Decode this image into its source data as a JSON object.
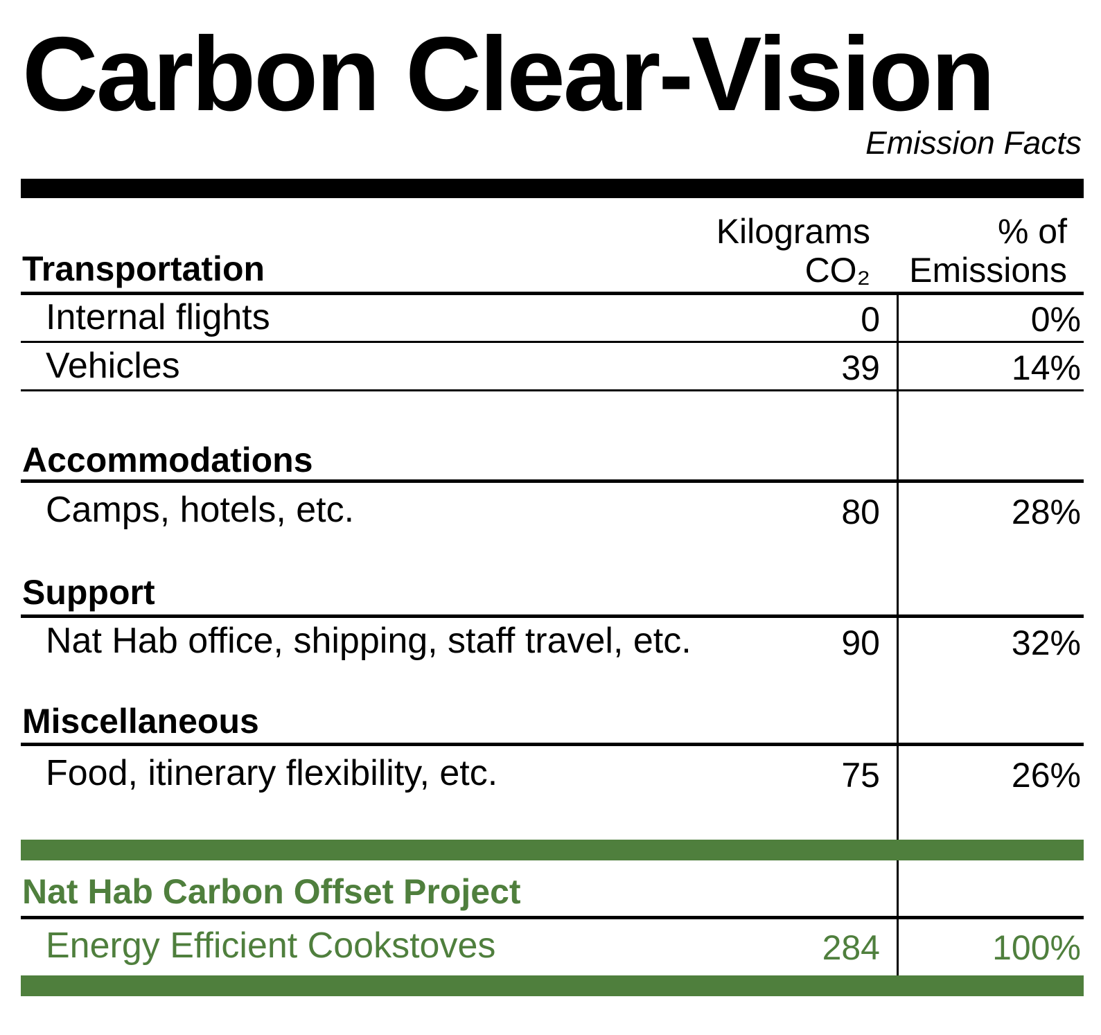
{
  "title": "Carbon Clear-Vision",
  "subtitle": "Emission Facts",
  "columns": {
    "kg_line1": "Kilograms",
    "kg_line2": "CO₂",
    "pct_line1": "% of",
    "pct_line2": "Emissions"
  },
  "sections": [
    {
      "heading": "Transportation",
      "rows": [
        {
          "label": "Internal flights",
          "kg": "0",
          "pct": "0%"
        },
        {
          "label": "Vehicles",
          "kg": "39",
          "pct": "14%"
        }
      ]
    },
    {
      "heading": "Accommodations",
      "rows": [
        {
          "label": "Camps, hotels, etc.",
          "kg": "80",
          "pct": "28%"
        }
      ]
    },
    {
      "heading": "Support",
      "rows": [
        {
          "label": "Nat Hab office, shipping, staff travel, etc.",
          "kg": "90",
          "pct": "32%"
        }
      ]
    },
    {
      "heading": "Miscellaneous",
      "rows": [
        {
          "label": "Food, itinerary flexibility, etc.",
          "kg": "75",
          "pct": "26%"
        }
      ]
    }
  ],
  "offset": {
    "heading": "Nat Hab Carbon Offset Project",
    "label": "Energy Efficient Cookstoves",
    "kg": "284",
    "pct": "100%"
  },
  "colors": {
    "accent_green": "#4f7f3d",
    "text": "#000000",
    "background": "#ffffff"
  }
}
